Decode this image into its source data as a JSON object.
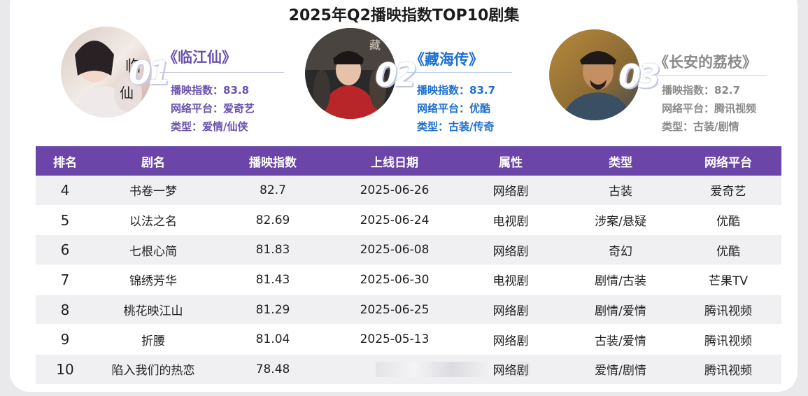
{
  "title": "2025年Q2播映指数TOP10剧集",
  "colors": {
    "header_bg": "#6b46a8",
    "row_alt_bg": "#f0f0f3",
    "top1_accent": "#6a52b0",
    "top2_accent": "#1f6fd1",
    "top3_accent": "#8a8a8a"
  },
  "top3": [
    {
      "rank": "01",
      "title": "《临江仙》",
      "index": "播映指数：83.8",
      "platform": "网络平台：爱奇艺",
      "genre": "类型：爱情/仙侠"
    },
    {
      "rank": "02",
      "title": "《藏海传》",
      "index": "播映指数：83.7",
      "platform": "网络平台：优酷",
      "genre": "类型：古装/传奇"
    },
    {
      "rank": "03",
      "title": "《长安的荔枝》",
      "index": "播映指数：82.7",
      "platform": "网络平台：腾讯视频",
      "genre": "类型：古装/剧情"
    }
  ],
  "table": {
    "headers": [
      "排名",
      "剧名",
      "播映指数",
      "上线日期",
      "属性",
      "类型",
      "网络平台"
    ],
    "rows": [
      [
        "4",
        "书卷一梦",
        "82.7",
        "2025-06-26",
        "网络剧",
        "古装",
        "爱奇艺"
      ],
      [
        "5",
        "以法之名",
        "82.69",
        "2025-06-24",
        "电视剧",
        "涉案/悬疑",
        "优酷"
      ],
      [
        "6",
        "七根心简",
        "81.83",
        "2025-06-08",
        "网络剧",
        "奇幻",
        "优酷"
      ],
      [
        "7",
        "锦绣芳华",
        "81.43",
        "2025-06-30",
        "电视剧",
        "剧情/古装",
        "芒果TV"
      ],
      [
        "8",
        "桃花映江山",
        "81.29",
        "2025-06-25",
        "网络剧",
        "剧情/爱情",
        "腾讯视频"
      ],
      [
        "9",
        "折腰",
        "81.04",
        "2025-05-13",
        "网络剧",
        "古装/爱情",
        "腾讯视频"
      ],
      [
        "10",
        "陷入我们的热恋",
        "78.48",
        "",
        "网络剧",
        "爱情/剧情",
        "腾讯视频"
      ]
    ]
  }
}
